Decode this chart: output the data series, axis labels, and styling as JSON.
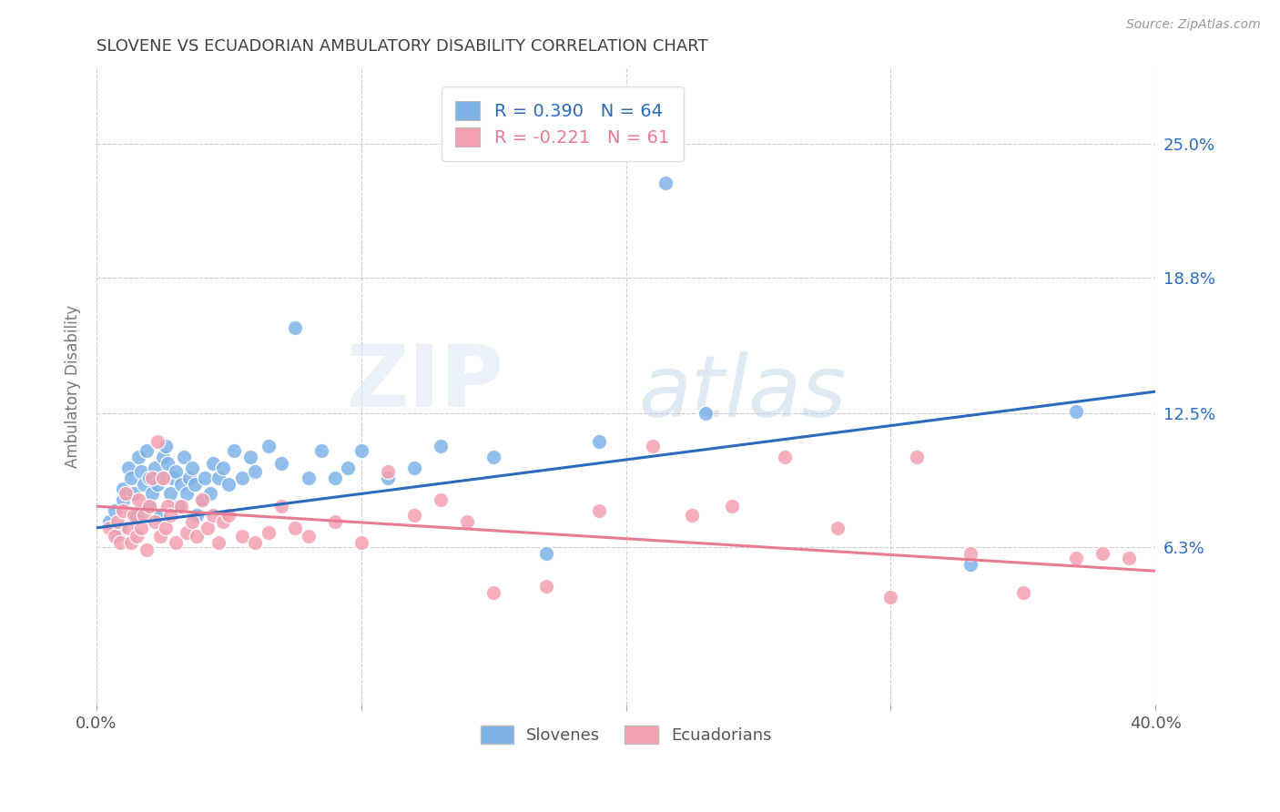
{
  "title": "SLOVENE VS ECUADORIAN AMBULATORY DISABILITY CORRELATION CHART",
  "source": "Source: ZipAtlas.com",
  "ylabel": "Ambulatory Disability",
  "ytick_labels": [
    "6.3%",
    "12.5%",
    "18.8%",
    "25.0%"
  ],
  "ytick_values": [
    0.063,
    0.125,
    0.188,
    0.25
  ],
  "xlim": [
    0.0,
    0.4
  ],
  "ylim": [
    -0.01,
    0.285
  ],
  "slovene_color": "#7eb3e8",
  "ecuadorian_color": "#f4a0b0",
  "slovene_line_color": "#2a6bbf",
  "ecuadorian_line_color": "#e87a91",
  "slovene_R": 0.39,
  "slovene_N": 64,
  "ecuadorian_R": -0.221,
  "ecuadorian_N": 61,
  "legend_labels": [
    "Slovenes",
    "Ecuadorians"
  ],
  "watermark_zip": "ZIP",
  "watermark_atlas": "atlas",
  "background_color": "#ffffff",
  "grid_color": "#cccccc",
  "title_color": "#404040",
  "slovene_x": [
    0.005,
    0.007,
    0.008,
    0.009,
    0.01,
    0.01,
    0.012,
    0.013,
    0.014,
    0.015,
    0.016,
    0.017,
    0.018,
    0.019,
    0.02,
    0.02,
    0.021,
    0.022,
    0.023,
    0.024,
    0.025,
    0.025,
    0.026,
    0.027,
    0.028,
    0.029,
    0.03,
    0.031,
    0.032,
    0.033,
    0.034,
    0.035,
    0.036,
    0.037,
    0.038,
    0.04,
    0.041,
    0.043,
    0.044,
    0.046,
    0.048,
    0.05,
    0.052,
    0.055,
    0.058,
    0.06,
    0.065,
    0.07,
    0.075,
    0.08,
    0.085,
    0.09,
    0.095,
    0.1,
    0.11,
    0.12,
    0.13,
    0.15,
    0.17,
    0.19,
    0.215,
    0.23,
    0.33,
    0.37
  ],
  "slovene_y": [
    0.075,
    0.08,
    0.068,
    0.072,
    0.085,
    0.09,
    0.1,
    0.095,
    0.088,
    0.078,
    0.105,
    0.098,
    0.092,
    0.108,
    0.082,
    0.095,
    0.088,
    0.1,
    0.092,
    0.078,
    0.105,
    0.095,
    0.11,
    0.102,
    0.088,
    0.095,
    0.098,
    0.082,
    0.092,
    0.105,
    0.088,
    0.095,
    0.1,
    0.092,
    0.078,
    0.085,
    0.095,
    0.088,
    0.102,
    0.095,
    0.1,
    0.092,
    0.108,
    0.095,
    0.105,
    0.098,
    0.11,
    0.102,
    0.165,
    0.095,
    0.108,
    0.095,
    0.1,
    0.108,
    0.095,
    0.1,
    0.11,
    0.105,
    0.06,
    0.112,
    0.232,
    0.125,
    0.055,
    0.126
  ],
  "ecuadorian_x": [
    0.005,
    0.007,
    0.008,
    0.009,
    0.01,
    0.011,
    0.012,
    0.013,
    0.014,
    0.015,
    0.016,
    0.017,
    0.018,
    0.019,
    0.02,
    0.021,
    0.022,
    0.023,
    0.024,
    0.025,
    0.026,
    0.027,
    0.028,
    0.03,
    0.032,
    0.034,
    0.036,
    0.038,
    0.04,
    0.042,
    0.044,
    0.046,
    0.048,
    0.05,
    0.055,
    0.06,
    0.065,
    0.07,
    0.075,
    0.08,
    0.09,
    0.1,
    0.11,
    0.12,
    0.13,
    0.14,
    0.15,
    0.17,
    0.19,
    0.21,
    0.225,
    0.24,
    0.26,
    0.28,
    0.3,
    0.31,
    0.33,
    0.35,
    0.37,
    0.38,
    0.39
  ],
  "ecuadorian_y": [
    0.072,
    0.068,
    0.075,
    0.065,
    0.08,
    0.088,
    0.072,
    0.065,
    0.078,
    0.068,
    0.085,
    0.072,
    0.078,
    0.062,
    0.082,
    0.095,
    0.075,
    0.112,
    0.068,
    0.095,
    0.072,
    0.082,
    0.078,
    0.065,
    0.082,
    0.07,
    0.075,
    0.068,
    0.085,
    0.072,
    0.078,
    0.065,
    0.075,
    0.078,
    0.068,
    0.065,
    0.07,
    0.082,
    0.072,
    0.068,
    0.075,
    0.065,
    0.098,
    0.078,
    0.085,
    0.075,
    0.042,
    0.045,
    0.08,
    0.11,
    0.078,
    0.082,
    0.105,
    0.072,
    0.04,
    0.105,
    0.06,
    0.042,
    0.058,
    0.06,
    0.058
  ]
}
